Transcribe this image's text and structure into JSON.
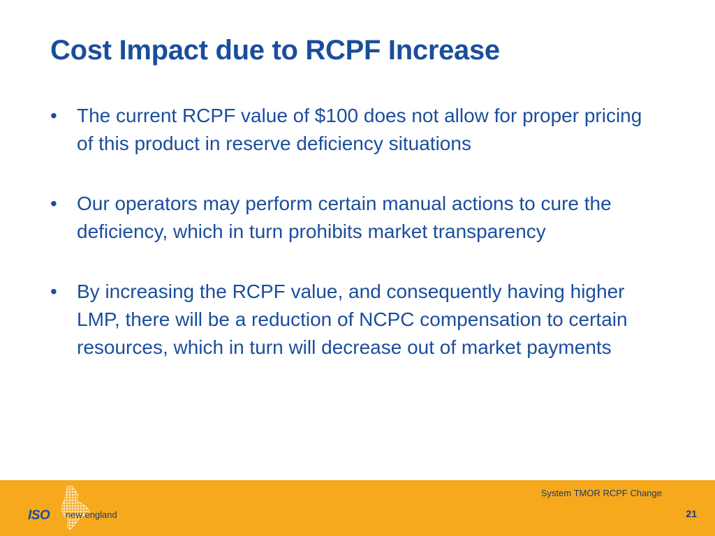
{
  "slide": {
    "title": "Cost Impact due to RCPF Increase",
    "bullets": [
      {
        "text": "The current RCPF value of $100 does not allow for proper pricing of this product in reserve deficiency situations"
      },
      {
        "text": "Our operators may perform certain manual actions to cure the deficiency, which in turn prohibits market transparency"
      },
      {
        "text": "By increasing the RCPF value, and consequently having higher LMP, there will be a reduction of NCPC compensation to certain resources, which in turn will decrease out of market payments"
      }
    ],
    "bullet_glyph": "•"
  },
  "footer": {
    "label": "System TMOR RCPF Change",
    "page_number": "21",
    "logo_text": "ISO",
    "logo_sub": "new england",
    "logo_icon": "new-england-map-icon"
  },
  "colors": {
    "title": "#1a4e9c",
    "text": "#1a4e9c",
    "footer_bg": "#f6a91c",
    "footer_text": "#1a3a6e"
  }
}
